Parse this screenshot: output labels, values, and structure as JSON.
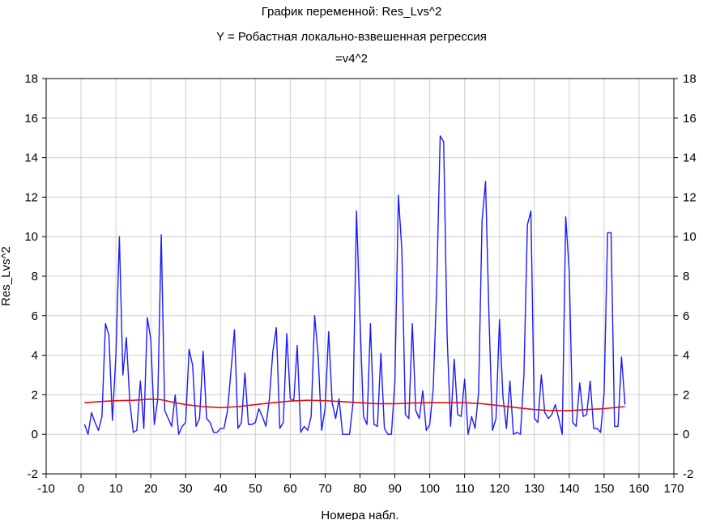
{
  "chart_title": {
    "line1": "График переменной: Res_Lvs^2",
    "line2": "Y = Робастная локально-взвешенная регрессия",
    "line3": "=v4^2"
  },
  "colors": {
    "series": "#1a1aff",
    "fit": "#e01010",
    "grid": "#cfcfcf",
    "axis": "#000000"
  },
  "chart_data": {
    "type": "line",
    "title": "График переменной: Res_Lvs^2",
    "subtitle": "Y = Робастная локально-взвешенная регрессия =v4^2",
    "xlabel": "Номера набл.",
    "ylabel": "Res_Lvs^2",
    "xlim": [
      -10,
      170
    ],
    "ylim": [
      -2,
      18
    ],
    "x_ticks": [
      -10,
      0,
      10,
      20,
      30,
      40,
      50,
      60,
      70,
      80,
      90,
      100,
      110,
      120,
      130,
      140,
      150,
      160,
      170
    ],
    "y_ticks": [
      -2,
      0,
      2,
      4,
      6,
      8,
      10,
      12,
      14,
      16,
      18
    ],
    "grid": true,
    "series": [
      {
        "values": [
          [
            1,
            0.5
          ],
          [
            2,
            0.0
          ],
          [
            3,
            1.1
          ],
          [
            4,
            0.6
          ],
          [
            5,
            0.2
          ],
          [
            6,
            0.9
          ],
          [
            7,
            5.6
          ],
          [
            8,
            5.0
          ],
          [
            9,
            0.7
          ],
          [
            10,
            4.0
          ],
          [
            11,
            10.0
          ],
          [
            12,
            3.0
          ],
          [
            13,
            4.9
          ],
          [
            14,
            1.6
          ],
          [
            15,
            0.1
          ],
          [
            16,
            0.2
          ],
          [
            17,
            2.7
          ],
          [
            18,
            0.3
          ],
          [
            19,
            5.9
          ],
          [
            20,
            4.8
          ],
          [
            21,
            0.5
          ],
          [
            22,
            1.8
          ],
          [
            23,
            10.1
          ],
          [
            24,
            1.2
          ],
          [
            25,
            0.8
          ],
          [
            26,
            0.4
          ],
          [
            27,
            2.0
          ],
          [
            28,
            0.0
          ],
          [
            29,
            0.4
          ],
          [
            30,
            0.6
          ],
          [
            31,
            4.3
          ],
          [
            32,
            3.5
          ],
          [
            33,
            0.4
          ],
          [
            34,
            0.8
          ],
          [
            35,
            4.2
          ],
          [
            36,
            0.8
          ],
          [
            37,
            0.6
          ],
          [
            38,
            0.1
          ],
          [
            39,
            0.1
          ],
          [
            40,
            0.3
          ],
          [
            41,
            0.3
          ],
          [
            42,
            1.2
          ],
          [
            43,
            3.2
          ],
          [
            44,
            5.3
          ],
          [
            45,
            0.3
          ],
          [
            46,
            0.6
          ],
          [
            47,
            3.1
          ],
          [
            48,
            0.5
          ],
          [
            49,
            0.5
          ],
          [
            50,
            0.6
          ],
          [
            51,
            1.3
          ],
          [
            52,
            0.9
          ],
          [
            53,
            0.4
          ],
          [
            54,
            1.8
          ],
          [
            55,
            4.2
          ],
          [
            56,
            5.4
          ],
          [
            57,
            0.3
          ],
          [
            58,
            0.6
          ],
          [
            59,
            5.1
          ],
          [
            60,
            1.8
          ],
          [
            61,
            1.7
          ],
          [
            62,
            4.5
          ],
          [
            63,
            0.1
          ],
          [
            64,
            0.4
          ],
          [
            65,
            0.2
          ],
          [
            66,
            0.9
          ],
          [
            67,
            6.0
          ],
          [
            68,
            4.0
          ],
          [
            69,
            0.2
          ],
          [
            70,
            1.3
          ],
          [
            71,
            5.2
          ],
          [
            72,
            1.6
          ],
          [
            73,
            0.8
          ],
          [
            74,
            1.8
          ],
          [
            75,
            0.0
          ],
          [
            76,
            0.0
          ],
          [
            77,
            0.0
          ],
          [
            78,
            1.6
          ],
          [
            79,
            11.3
          ],
          [
            80,
            5.8
          ],
          [
            81,
            0.9
          ],
          [
            82,
            0.5
          ],
          [
            83,
            5.6
          ],
          [
            84,
            0.5
          ],
          [
            85,
            0.4
          ],
          [
            86,
            4.1
          ],
          [
            87,
            0.3
          ],
          [
            88,
            0.0
          ],
          [
            89,
            0.0
          ],
          [
            90,
            2.7
          ],
          [
            91,
            12.1
          ],
          [
            92,
            9.3
          ],
          [
            93,
            1.0
          ],
          [
            94,
            0.8
          ],
          [
            95,
            5.6
          ],
          [
            96,
            1.2
          ],
          [
            97,
            0.8
          ],
          [
            98,
            2.2
          ],
          [
            99,
            0.2
          ],
          [
            100,
            0.5
          ],
          [
            101,
            2.3
          ],
          [
            102,
            7.5
          ],
          [
            103,
            15.1
          ],
          [
            104,
            14.8
          ],
          [
            105,
            4.9
          ],
          [
            106,
            0.4
          ],
          [
            107,
            3.8
          ],
          [
            108,
            1.0
          ],
          [
            109,
            0.9
          ],
          [
            110,
            2.8
          ],
          [
            111,
            0.0
          ],
          [
            112,
            0.9
          ],
          [
            113,
            0.3
          ],
          [
            114,
            2.1
          ],
          [
            115,
            10.8
          ],
          [
            116,
            12.8
          ],
          [
            117,
            5.9
          ],
          [
            118,
            0.2
          ],
          [
            119,
            0.8
          ],
          [
            120,
            5.8
          ],
          [
            121,
            1.9
          ],
          [
            122,
            0.3
          ],
          [
            123,
            2.7
          ],
          [
            124,
            0.0
          ],
          [
            125,
            0.1
          ],
          [
            126,
            0.0
          ],
          [
            127,
            3.0
          ],
          [
            128,
            10.6
          ],
          [
            129,
            11.3
          ],
          [
            130,
            0.8
          ],
          [
            131,
            0.6
          ],
          [
            132,
            3.0
          ],
          [
            133,
            1.1
          ],
          [
            134,
            0.8
          ],
          [
            135,
            1.0
          ],
          [
            136,
            1.5
          ],
          [
            137,
            0.8
          ],
          [
            138,
            0.0
          ],
          [
            139,
            11.0
          ],
          [
            140,
            8.3
          ],
          [
            141,
            0.6
          ],
          [
            142,
            0.4
          ],
          [
            143,
            2.6
          ],
          [
            144,
            0.9
          ],
          [
            145,
            1.0
          ],
          [
            146,
            2.7
          ],
          [
            147,
            0.3
          ],
          [
            148,
            0.3
          ],
          [
            149,
            0.1
          ],
          [
            150,
            2.1
          ],
          [
            151,
            10.2
          ],
          [
            152,
            10.2
          ],
          [
            153,
            0.4
          ],
          [
            154,
            0.4
          ],
          [
            155,
            3.9
          ],
          [
            156,
            1.5
          ]
        ]
      },
      {
        "values": [
          [
            1,
            1.6
          ],
          [
            5,
            1.65
          ],
          [
            10,
            1.7
          ],
          [
            15,
            1.72
          ],
          [
            20,
            1.78
          ],
          [
            23,
            1.75
          ],
          [
            27,
            1.6
          ],
          [
            30,
            1.5
          ],
          [
            35,
            1.4
          ],
          [
            40,
            1.35
          ],
          [
            45,
            1.4
          ],
          [
            50,
            1.5
          ],
          [
            55,
            1.6
          ],
          [
            60,
            1.68
          ],
          [
            65,
            1.72
          ],
          [
            70,
            1.7
          ],
          [
            75,
            1.65
          ],
          [
            80,
            1.6
          ],
          [
            85,
            1.55
          ],
          [
            90,
            1.55
          ],
          [
            95,
            1.58
          ],
          [
            100,
            1.6
          ],
          [
            105,
            1.6
          ],
          [
            110,
            1.6
          ],
          [
            115,
            1.55
          ],
          [
            120,
            1.45
          ],
          [
            125,
            1.35
          ],
          [
            130,
            1.25
          ],
          [
            135,
            1.2
          ],
          [
            140,
            1.2
          ],
          [
            145,
            1.25
          ],
          [
            150,
            1.3
          ],
          [
            156,
            1.4
          ]
        ]
      }
    ]
  }
}
